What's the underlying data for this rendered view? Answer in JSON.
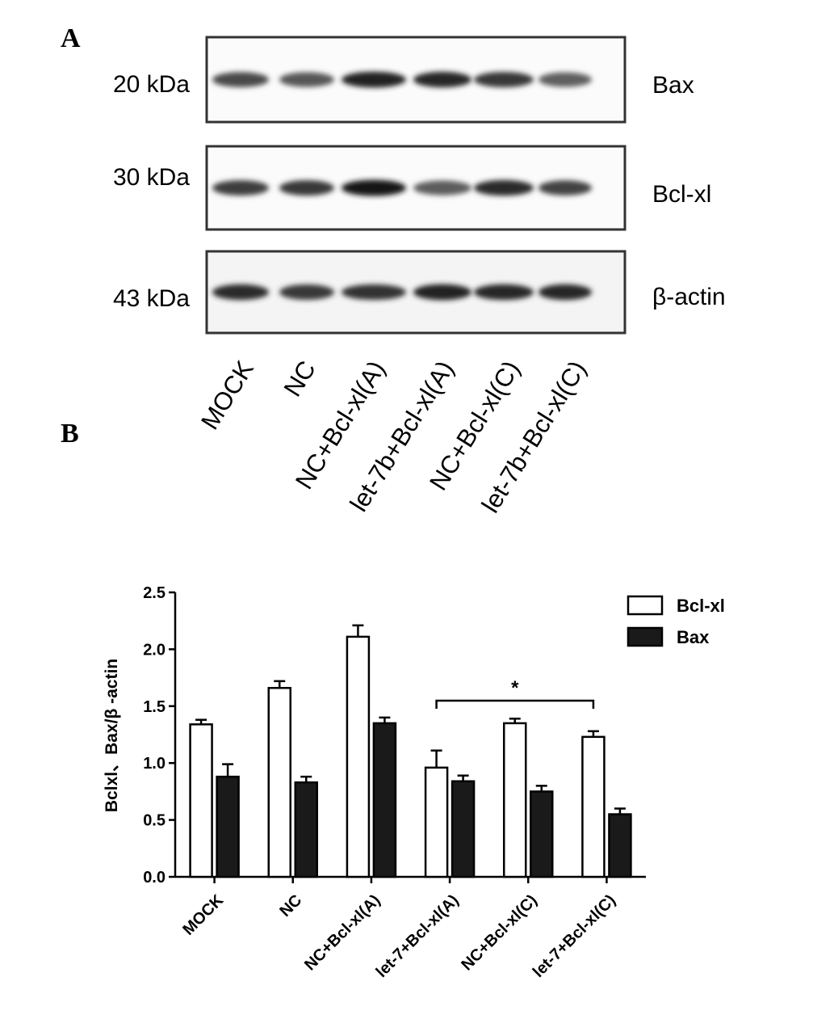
{
  "panels": {
    "a": "A",
    "b": "B"
  },
  "blot": {
    "rows": [
      {
        "kda": "20 kDa",
        "protein": "Bax",
        "intensity": [
          0.78,
          0.72,
          0.95,
          0.92,
          0.85,
          0.68
        ]
      },
      {
        "kda": "30 kDa",
        "protein": "Bcl-xl",
        "intensity": [
          0.82,
          0.85,
          1.0,
          0.7,
          0.9,
          0.8
        ]
      },
      {
        "kda": "43 kDa",
        "protein": "β-actin",
        "intensity": [
          0.9,
          0.85,
          0.88,
          0.95,
          0.92,
          0.92
        ]
      }
    ],
    "lanes": [
      "MOCK",
      "NC",
      "NC+Bcl-xl(A)",
      "let-7b+Bcl-xl(A)",
      "NC+Bcl-xl(C)",
      "let-7b+Bcl-xl(C)"
    ]
  },
  "chart_data": {
    "type": "bar",
    "ylabel": "Bclxl、Bax/β -actin",
    "ylim": [
      0,
      2.5
    ],
    "yticks": [
      "0.0",
      "0.5",
      "1.0",
      "1.5",
      "2.0",
      "2.5"
    ],
    "categories": [
      "MOCK",
      "NC",
      "NC+Bcl-xl(A)",
      "let-7+Bcl-xl(A)",
      "NC+Bcl-xl(C)",
      "let-7+Bcl-xl(C)"
    ],
    "series": [
      {
        "name": "Bcl-xl",
        "fill": "#ffffff",
        "values": [
          1.34,
          1.66,
          2.11,
          0.96,
          1.35,
          1.23
        ],
        "errors": [
          0.04,
          0.06,
          0.1,
          0.15,
          0.04,
          0.05
        ]
      },
      {
        "name": "Bax",
        "fill": "#1a1a1a",
        "values": [
          0.88,
          0.83,
          1.35,
          0.84,
          0.75,
          0.55
        ],
        "errors": [
          0.11,
          0.05,
          0.05,
          0.05,
          0.05,
          0.05
        ]
      }
    ],
    "legend_position": "top-right",
    "significance": {
      "label": "*",
      "from_category": 3,
      "to_category": 5
    }
  }
}
